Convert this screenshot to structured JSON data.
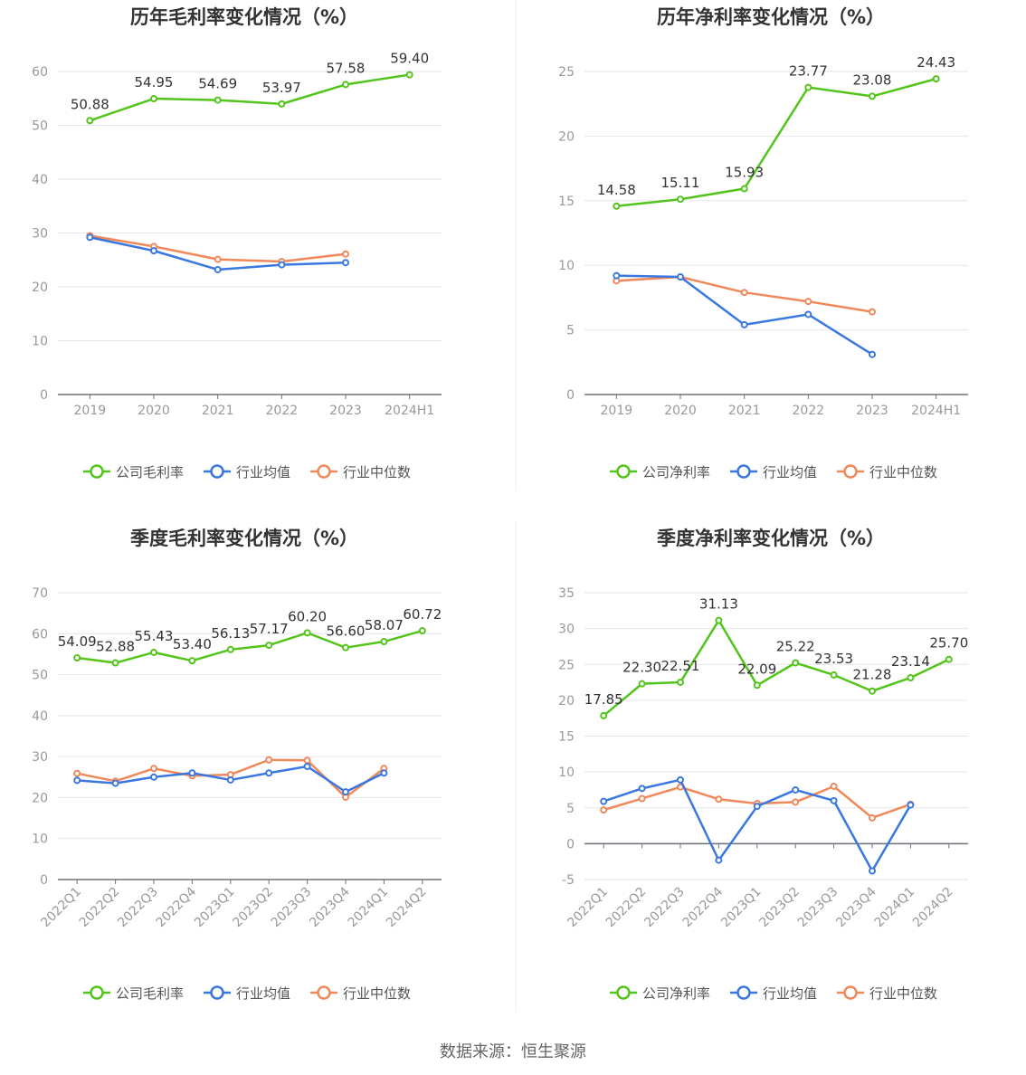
{
  "source_text": "数据来源：恒生聚源",
  "colors": {
    "company": "#52c41a",
    "avg": "#3a78e0",
    "median": "#f0885a",
    "axis": "#6e7079",
    "grid": "#e3e6ef",
    "tick": "#999999",
    "title": "#333333"
  },
  "chart_data": [
    {
      "type": "line",
      "title": "历年毛利率变化情况（%）",
      "x": [
        "2019",
        "2020",
        "2021",
        "2022",
        "2023",
        "2024H1"
      ],
      "ylim": [
        0,
        60
      ],
      "yticks": [
        0,
        10,
        20,
        30,
        40,
        50,
        60
      ],
      "x_rotated": false,
      "grid": true,
      "legend_position": "bottom",
      "series": [
        {
          "name": "公司毛利率",
          "color_key": "company",
          "labels": true,
          "values": [
            50.88,
            54.95,
            54.69,
            53.97,
            57.58,
            59.4
          ],
          "label_text": [
            "50.88",
            "54.95",
            "54.69",
            "53.97",
            "57.58",
            "59.40"
          ]
        },
        {
          "name": "行业均值",
          "color_key": "avg",
          "labels": false,
          "values": [
            29.2,
            26.7,
            23.2,
            24.1,
            24.5,
            null
          ]
        },
        {
          "name": "行业中位数",
          "color_key": "median",
          "labels": false,
          "values": [
            29.5,
            27.5,
            25.1,
            24.7,
            26.1,
            null
          ]
        }
      ]
    },
    {
      "type": "line",
      "title": "历年净利率变化情况（%）",
      "x": [
        "2019",
        "2020",
        "2021",
        "2022",
        "2023",
        "2024H1"
      ],
      "ylim": [
        0,
        25
      ],
      "yticks": [
        0,
        5,
        10,
        15,
        20,
        25
      ],
      "x_rotated": false,
      "grid": true,
      "legend_position": "bottom",
      "series": [
        {
          "name": "公司净利率",
          "color_key": "company",
          "labels": true,
          "values": [
            14.58,
            15.11,
            15.93,
            23.77,
            23.08,
            24.43
          ],
          "label_text": [
            "14.58",
            "15.11",
            "15.93",
            "23.77",
            "23.08",
            "24.43"
          ]
        },
        {
          "name": "行业均值",
          "color_key": "avg",
          "labels": false,
          "values": [
            9.2,
            9.1,
            5.4,
            6.2,
            3.1,
            null
          ]
        },
        {
          "name": "行业中位数",
          "color_key": "median",
          "labels": false,
          "values": [
            8.8,
            9.1,
            7.9,
            7.2,
            6.4,
            null
          ]
        }
      ]
    },
    {
      "type": "line",
      "title": "季度毛利率变化情况（%）",
      "x": [
        "2022Q1",
        "2022Q2",
        "2022Q3",
        "2022Q4",
        "2023Q1",
        "2023Q2",
        "2023Q3",
        "2023Q4",
        "2024Q1",
        "2024Q2"
      ],
      "ylim": [
        0,
        70
      ],
      "yticks": [
        0,
        10,
        20,
        30,
        40,
        50,
        60,
        70
      ],
      "x_rotated": true,
      "grid": true,
      "legend_position": "bottom",
      "series": [
        {
          "name": "公司毛利率",
          "color_key": "company",
          "labels": true,
          "values": [
            54.09,
            52.88,
            55.43,
            53.4,
            56.13,
            57.17,
            60.2,
            56.6,
            58.07,
            60.72
          ],
          "label_text": [
            "54.09",
            "52.88",
            "55.43",
            "53.40",
            "56.13",
            "57.17",
            "60.20",
            "56.60",
            "58.07",
            "60.72"
          ]
        },
        {
          "name": "行业均值",
          "color_key": "avg",
          "labels": false,
          "values": [
            24.2,
            23.5,
            25.0,
            26.0,
            24.3,
            26.0,
            27.6,
            21.4,
            26.0,
            null
          ]
        },
        {
          "name": "行业中位数",
          "color_key": "median",
          "labels": false,
          "values": [
            25.9,
            24.0,
            27.1,
            25.3,
            25.6,
            29.2,
            29.1,
            20.1,
            27.1,
            null
          ]
        }
      ]
    },
    {
      "type": "line",
      "title": "季度净利率变化情况（%）",
      "x": [
        "2022Q1",
        "2022Q2",
        "2022Q3",
        "2022Q4",
        "2023Q1",
        "2023Q2",
        "2023Q3",
        "2023Q4",
        "2024Q1",
        "2024Q2"
      ],
      "ylim": [
        -5,
        35
      ],
      "yticks": [
        -5,
        0,
        5,
        10,
        15,
        20,
        25,
        30,
        35
      ],
      "x_rotated": true,
      "grid": true,
      "legend_position": "bottom",
      "series": [
        {
          "name": "公司净利率",
          "color_key": "company",
          "labels": true,
          "values": [
            17.85,
            22.3,
            22.51,
            31.13,
            22.09,
            25.22,
            23.53,
            21.28,
            23.14,
            25.7
          ],
          "label_text": [
            "17.85",
            "22.30",
            "22.51",
            "31.13",
            "22.09",
            "25.22",
            "23.53",
            "21.28",
            "23.14",
            "25.70"
          ]
        },
        {
          "name": "行业均值",
          "color_key": "avg",
          "labels": false,
          "values": [
            5.9,
            7.7,
            8.9,
            -2.3,
            5.2,
            7.5,
            6.0,
            -3.8,
            5.4,
            null
          ]
        },
        {
          "name": "行业中位数",
          "color_key": "median",
          "labels": false,
          "values": [
            4.7,
            6.3,
            7.9,
            6.2,
            5.6,
            5.8,
            8.0,
            3.6,
            5.5,
            null
          ]
        }
      ]
    }
  ]
}
